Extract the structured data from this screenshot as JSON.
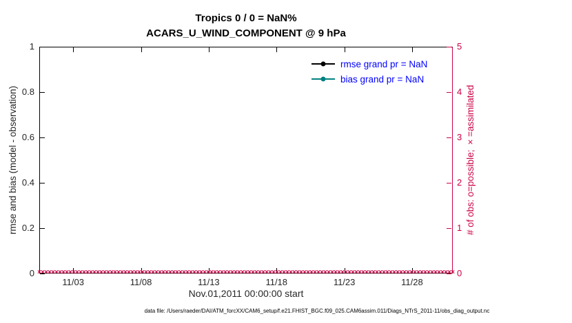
{
  "title": "Tropics 0 / 0 = NaN%",
  "subtitle": "ACARS_U_WIND_COMPONENT @ 9 hPa",
  "footer": "data file: /Users/raeder/DAI/ATM_forcXX/CAM6_setup/f.e21.FHIST_BGC.f09_025.CAM6assim.011/Diags_NTrS_2011-11/obs_diag_output.nc",
  "colors": {
    "right_axis": "#cc0044",
    "legend_text": "#0000ff",
    "rmse": "#000000",
    "bias": "#008080",
    "axis_text": "#262626"
  },
  "chart_data": {
    "type": "line",
    "title": "Tropics 0 / 0 = NaN%",
    "subtitle": "ACARS_U_WIND_COMPONENT @ 9 hPa",
    "xlabel": "Nov.01,2011 00:00:00 start",
    "ylabel_left": "rmse and bias (model - observation)",
    "ylabel_right": "# of obs: o=possible; ×=assimilated",
    "x_tick_labels": [
      "11/03",
      "11/08",
      "11/13",
      "11/18",
      "11/23",
      "11/28"
    ],
    "x_tick_days": [
      2,
      7,
      12,
      17,
      22,
      27
    ],
    "x_range_days": [
      -0.5,
      30
    ],
    "y_left_ticks": [
      "0",
      "0.2",
      "0.4",
      "0.6",
      "0.8",
      "1"
    ],
    "y_left_lim": [
      0,
      1
    ],
    "y_right_ticks": [
      "0",
      "1",
      "2",
      "3",
      "4",
      "5"
    ],
    "y_right_lim": [
      0,
      5
    ],
    "grid": false,
    "legend_position": "top-right-inside",
    "series": [
      {
        "name": "rmse",
        "legend": "rmse grand pr = NaN",
        "color": "#000000",
        "values": "NaN (no line drawn)"
      },
      {
        "name": "bias",
        "legend": "bias grand pr = NaN",
        "color": "#008080",
        "values": "NaN (no line drawn)"
      },
      {
        "name": "obs_assimilated",
        "marker": "×",
        "color": "#cc0044",
        "constant_value": 0,
        "count": 121,
        "note": "row of markers at 0 along entire x axis"
      }
    ]
  }
}
